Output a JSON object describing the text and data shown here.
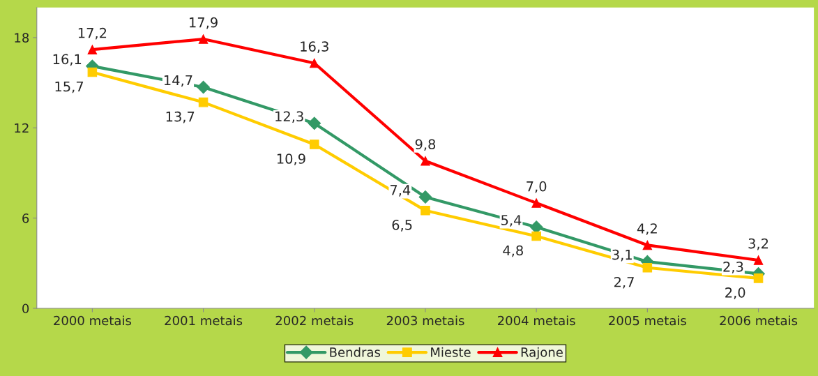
{
  "chart_data": {
    "type": "line",
    "categories": [
      "2000 metais",
      "2001 metais",
      "2002 metais",
      "2003 metais",
      "2004 metais",
      "2005 metais",
      "2006 metais"
    ],
    "series": [
      {
        "name": "Bendras",
        "color": "#339966",
        "marker": "diamond",
        "values": [
          16.1,
          14.7,
          12.3,
          7.4,
          5.4,
          3.1,
          2.3
        ],
        "value_labels": [
          "16,1",
          "14,7",
          "12,3",
          "7,4",
          "5,4",
          "3,1",
          "2,3"
        ]
      },
      {
        "name": "Mieste",
        "color": "#ffcc00",
        "marker": "square",
        "values": [
          15.7,
          13.7,
          10.9,
          6.5,
          4.8,
          2.7,
          2.0
        ],
        "value_labels": [
          "15,7",
          "13,7",
          "10,9",
          "6,5",
          "4,8",
          "2,7",
          "2,0"
        ]
      },
      {
        "name": "Rajone",
        "color": "#ff0000",
        "marker": "triangle",
        "values": [
          17.2,
          17.9,
          16.3,
          9.8,
          7.0,
          4.2,
          3.2
        ],
        "value_labels": [
          "17,2",
          "17,9",
          "16,3",
          "9,8",
          "7,0",
          "4,2",
          "3,2"
        ]
      }
    ],
    "ylim": [
      0,
      20
    ],
    "yticks": [
      0,
      6,
      12,
      18
    ],
    "grid": false,
    "legend": "bottom",
    "line_style": "solid"
  }
}
